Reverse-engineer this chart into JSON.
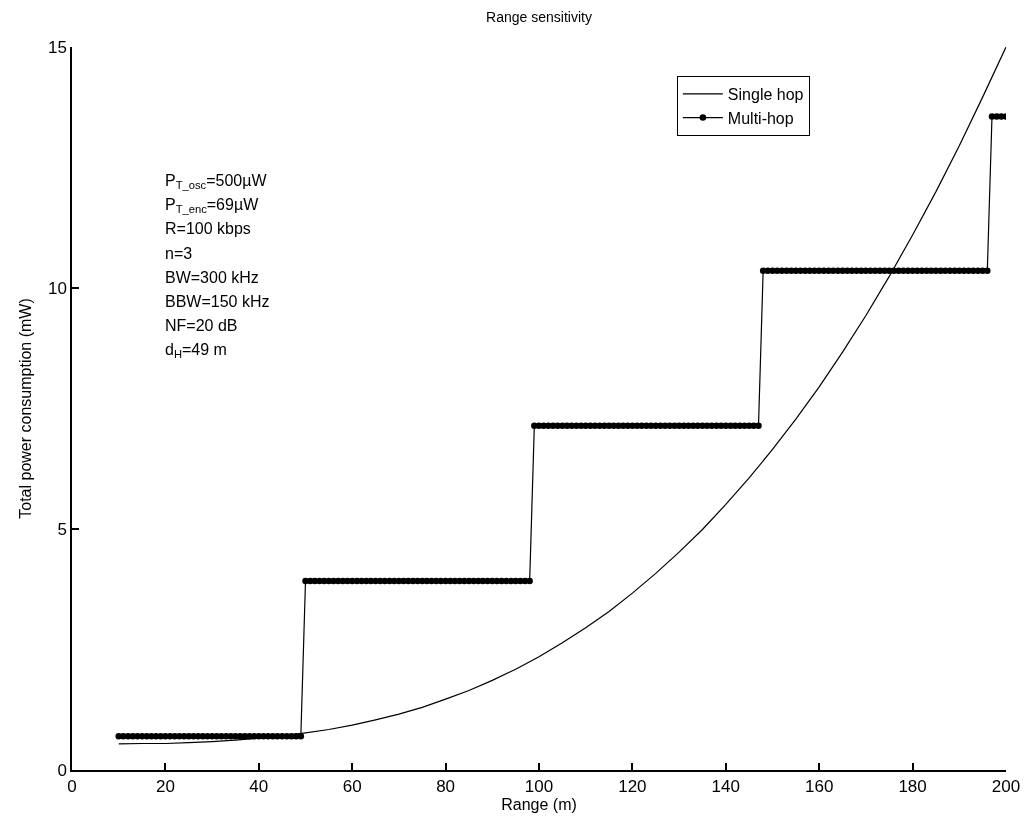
{
  "chart_data": {
    "type": "line",
    "title": "Range sensitivity",
    "xlabel": "Range (m)",
    "ylabel": "Total power consumption (mW)",
    "xlim": [
      0,
      200
    ],
    "xticks": [
      0,
      20,
      40,
      60,
      80,
      100,
      120,
      140,
      160,
      180,
      200
    ],
    "ylim": [
      0,
      15
    ],
    "yticks": [
      0,
      5,
      10,
      15
    ],
    "legend": "top right",
    "annotations": [
      "P$_{T_osc}$=500µW",
      "P$_{T_enc}$=69µW",
      "R=100 kbps",
      "n=3",
      "BW=300 kHz",
      "BBW=150 kHz",
      "NF=20 dB",
      "d$_{H}$=49 m"
    ],
    "series": [
      {
        "name": "Single hop",
        "color": "#000000",
        "marker": "none",
        "x": [
          10,
          15,
          20,
          25,
          30,
          35,
          40,
          45,
          50,
          55,
          60,
          65,
          70,
          75,
          80,
          85,
          90,
          95,
          100,
          105,
          110,
          115,
          120,
          125,
          130,
          135,
          140,
          145,
          150,
          155,
          160,
          165,
          170,
          175,
          180,
          185,
          190,
          195,
          200
        ],
        "values": [
          0.54,
          0.55,
          0.55,
          0.57,
          0.59,
          0.62,
          0.66,
          0.71,
          0.77,
          0.84,
          0.93,
          1.04,
          1.16,
          1.3,
          1.47,
          1.65,
          1.86,
          2.09,
          2.35,
          2.64,
          2.95,
          3.29,
          3.67,
          4.08,
          4.52,
          4.99,
          5.51,
          6.06,
          6.65,
          7.28,
          7.95,
          8.67,
          9.43,
          10.24,
          11.1,
          12.0,
          12.95,
          13.96,
          15.0
        ]
      },
      {
        "name": "Multi-hop",
        "color": "#000000",
        "marker": "circle",
        "x": [
          10,
          11,
          12,
          13,
          14,
          15,
          16,
          17,
          18,
          19,
          20,
          21,
          22,
          23,
          24,
          25,
          26,
          27,
          28,
          29,
          30,
          31,
          32,
          33,
          34,
          35,
          36,
          37,
          38,
          39,
          40,
          41,
          42,
          43,
          44,
          45,
          46,
          47,
          48,
          49,
          50,
          51,
          52,
          53,
          54,
          55,
          56,
          57,
          58,
          59,
          60,
          61,
          62,
          63,
          64,
          65,
          66,
          67,
          68,
          69,
          70,
          71,
          72,
          73,
          74,
          75,
          76,
          77,
          78,
          79,
          80,
          81,
          82,
          83,
          84,
          85,
          86,
          87,
          88,
          89,
          90,
          91,
          92,
          93,
          94,
          95,
          96,
          97,
          98,
          99,
          100,
          101,
          102,
          103,
          104,
          105,
          106,
          107,
          108,
          109,
          110,
          111,
          112,
          113,
          114,
          115,
          116,
          117,
          118,
          119,
          120,
          121,
          122,
          123,
          124,
          125,
          126,
          127,
          128,
          129,
          130,
          131,
          132,
          133,
          134,
          135,
          136,
          137,
          138,
          139,
          140,
          141,
          142,
          143,
          144,
          145,
          146,
          147,
          148,
          149,
          150,
          151,
          152,
          153,
          154,
          155,
          156,
          157,
          158,
          159,
          160,
          161,
          162,
          163,
          164,
          165,
          166,
          167,
          168,
          169,
          170,
          171,
          172,
          173,
          174,
          175,
          176,
          177,
          178,
          179,
          180,
          181,
          182,
          183,
          184,
          185,
          186,
          187,
          188,
          189,
          190,
          191,
          192,
          193,
          194,
          195,
          196,
          197,
          198,
          199,
          200
        ],
        "values": [
          0.7,
          0.7,
          0.7,
          0.7,
          0.7,
          0.7,
          0.7,
          0.7,
          0.7,
          0.7,
          0.7,
          0.7,
          0.7,
          0.7,
          0.7,
          0.7,
          0.7,
          0.7,
          0.7,
          0.7,
          0.7,
          0.7,
          0.7,
          0.7,
          0.7,
          0.7,
          0.7,
          0.7,
          0.7,
          0.7,
          0.7,
          0.7,
          0.7,
          0.7,
          0.7,
          0.7,
          0.7,
          0.7,
          0.7,
          0.7,
          3.92,
          3.92,
          3.92,
          3.92,
          3.92,
          3.92,
          3.92,
          3.92,
          3.92,
          3.92,
          3.92,
          3.92,
          3.92,
          3.92,
          3.92,
          3.92,
          3.92,
          3.92,
          3.92,
          3.92,
          3.92,
          3.92,
          3.92,
          3.92,
          3.92,
          3.92,
          3.92,
          3.92,
          3.92,
          3.92,
          3.92,
          3.92,
          3.92,
          3.92,
          3.92,
          3.92,
          3.92,
          3.92,
          3.92,
          3.92,
          3.92,
          3.92,
          3.92,
          3.92,
          3.92,
          3.92,
          3.92,
          3.92,
          3.92,
          7.14,
          7.14,
          7.14,
          7.14,
          7.14,
          7.14,
          7.14,
          7.14,
          7.14,
          7.14,
          7.14,
          7.14,
          7.14,
          7.14,
          7.14,
          7.14,
          7.14,
          7.14,
          7.14,
          7.14,
          7.14,
          7.14,
          7.14,
          7.14,
          7.14,
          7.14,
          7.14,
          7.14,
          7.14,
          7.14,
          7.14,
          7.14,
          7.14,
          7.14,
          7.14,
          7.14,
          7.14,
          7.14,
          7.14,
          7.14,
          7.14,
          7.14,
          7.14,
          7.14,
          7.14,
          7.14,
          7.14,
          7.14,
          7.14,
          10.36,
          10.36,
          10.36,
          10.36,
          10.36,
          10.36,
          10.36,
          10.36,
          10.36,
          10.36,
          10.36,
          10.36,
          10.36,
          10.36,
          10.36,
          10.36,
          10.36,
          10.36,
          10.36,
          10.36,
          10.36,
          10.36,
          10.36,
          10.36,
          10.36,
          10.36,
          10.36,
          10.36,
          10.36,
          10.36,
          10.36,
          10.36,
          10.36,
          10.36,
          10.36,
          10.36,
          10.36,
          10.36,
          10.36,
          10.36,
          10.36,
          10.36,
          10.36,
          10.36,
          10.36,
          10.36,
          10.36,
          10.36,
          10.36,
          13.56,
          13.56,
          13.56,
          13.56
        ]
      }
    ]
  }
}
